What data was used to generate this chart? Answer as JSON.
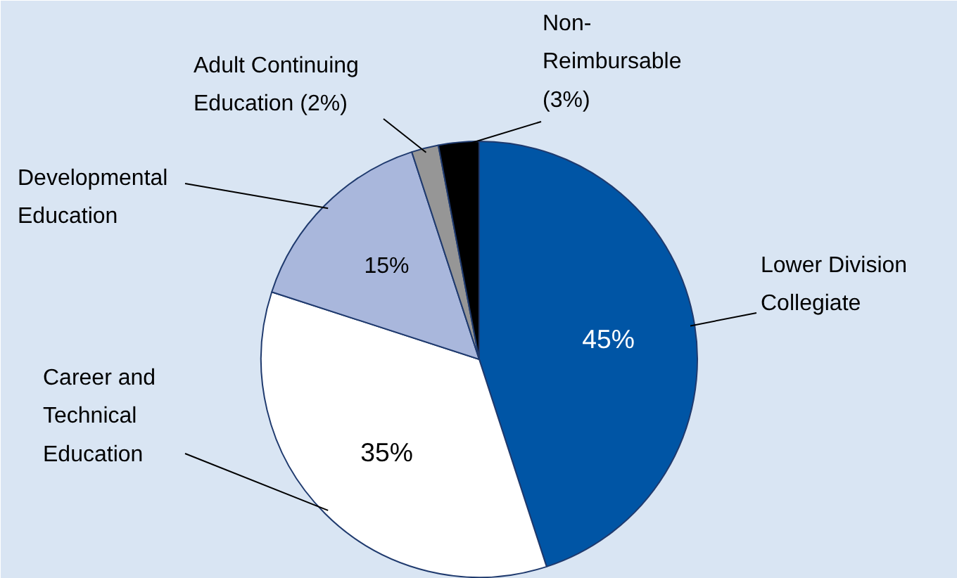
{
  "chart_data": {
    "type": "pie",
    "categories": [
      "Lower Division Collegiate",
      "Career and Technical Education",
      "Developmental Education",
      "Adult Continuing Education",
      "Non-Reimbursable"
    ],
    "values": [
      45,
      35,
      15,
      2,
      3
    ],
    "colors": [
      "#0055a5",
      "#ffffff",
      "#a9b7dc",
      "#969696",
      "#000000"
    ],
    "value_labels": [
      "45%",
      "35%",
      "15%",
      "(2%)",
      "(3%)"
    ],
    "legend": false
  }
}
